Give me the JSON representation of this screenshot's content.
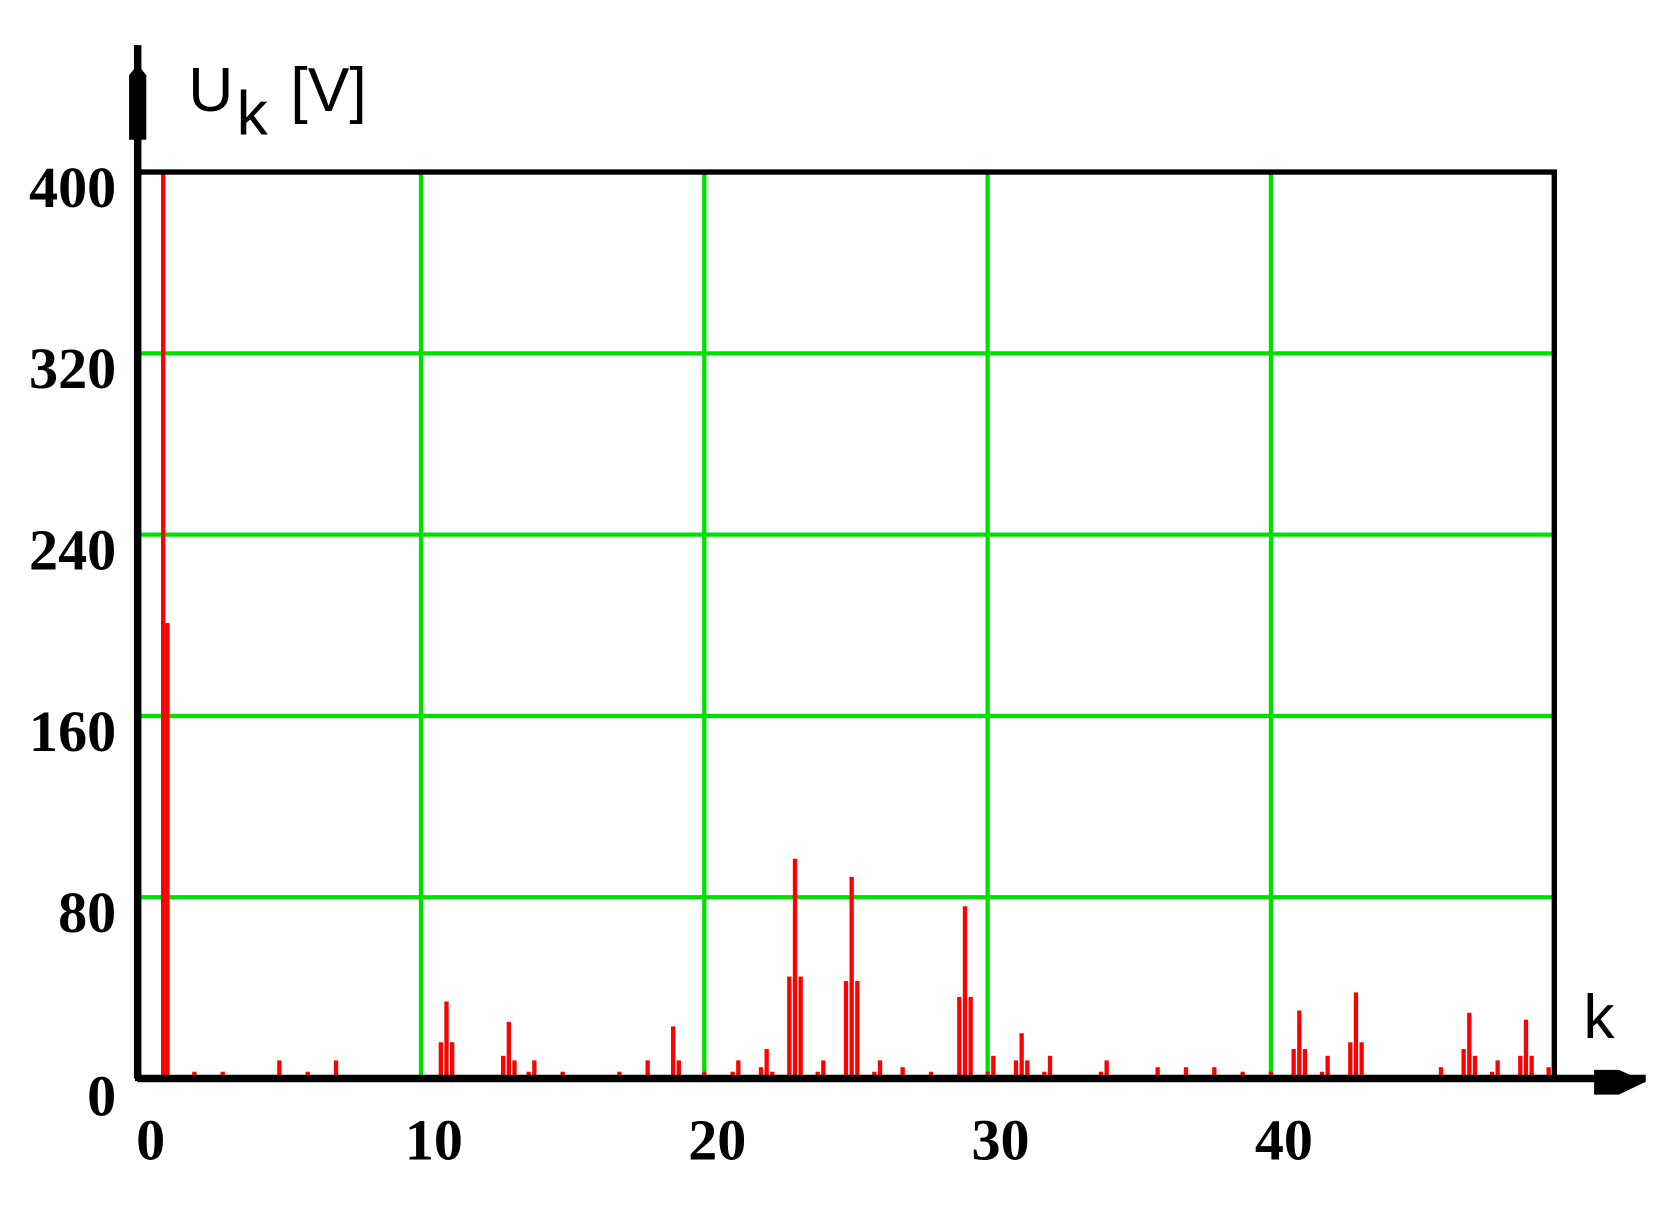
{
  "chart_data": {
    "type": "bar",
    "ylabel": {
      "main": "U",
      "sub": "k",
      "unit": "[V]"
    },
    "xlabel": "k",
    "color": "#ff0000",
    "grid": true,
    "grid_color": "#00e000",
    "xlim": [
      0,
      50
    ],
    "ylim": [
      0,
      400
    ],
    "xticks": [
      0,
      10,
      20,
      30,
      40
    ],
    "yticks": [
      0,
      80,
      160,
      240,
      320,
      400
    ],
    "x": [
      0.9,
      1.05,
      2,
      3,
      5,
      6,
      7,
      10.7,
      10.9,
      11.1,
      12.9,
      13.1,
      13.3,
      13.8,
      14,
      15,
      17,
      18,
      18.9,
      19.1,
      20,
      21,
      21.2,
      22,
      22.2,
      22.4,
      23.0,
      23.2,
      23.4,
      24,
      24.2,
      25,
      25.2,
      25.4,
      26,
      26.2,
      27,
      28,
      29,
      29.2,
      29.4,
      30,
      30.2,
      31,
      31.2,
      31.4,
      32,
      32.2,
      34,
      34.2,
      36,
      37,
      38,
      39,
      40,
      40.8,
      41,
      41.2,
      41.8,
      42,
      42.8,
      43,
      43.2,
      46,
      46.8,
      47,
      47.2,
      47.8,
      48,
      48.8,
      49,
      49.2,
      49.8,
      50
    ],
    "values": [
      400,
      201,
      3,
      3,
      8,
      3,
      8,
      16,
      34,
      16,
      10,
      25,
      8,
      3,
      8,
      3,
      3,
      8,
      23,
      8,
      3,
      3,
      8,
      5,
      13,
      3,
      45,
      97,
      45,
      3,
      8,
      43,
      89,
      43,
      3,
      8,
      5,
      3,
      36,
      76,
      36,
      3,
      10,
      8,
      20,
      8,
      3,
      10,
      3,
      8,
      5,
      5,
      5,
      3,
      3,
      13,
      30,
      13,
      3,
      10,
      16,
      38,
      16,
      5,
      13,
      29,
      10,
      3,
      8,
      10,
      26,
      10,
      5,
      13
    ]
  }
}
